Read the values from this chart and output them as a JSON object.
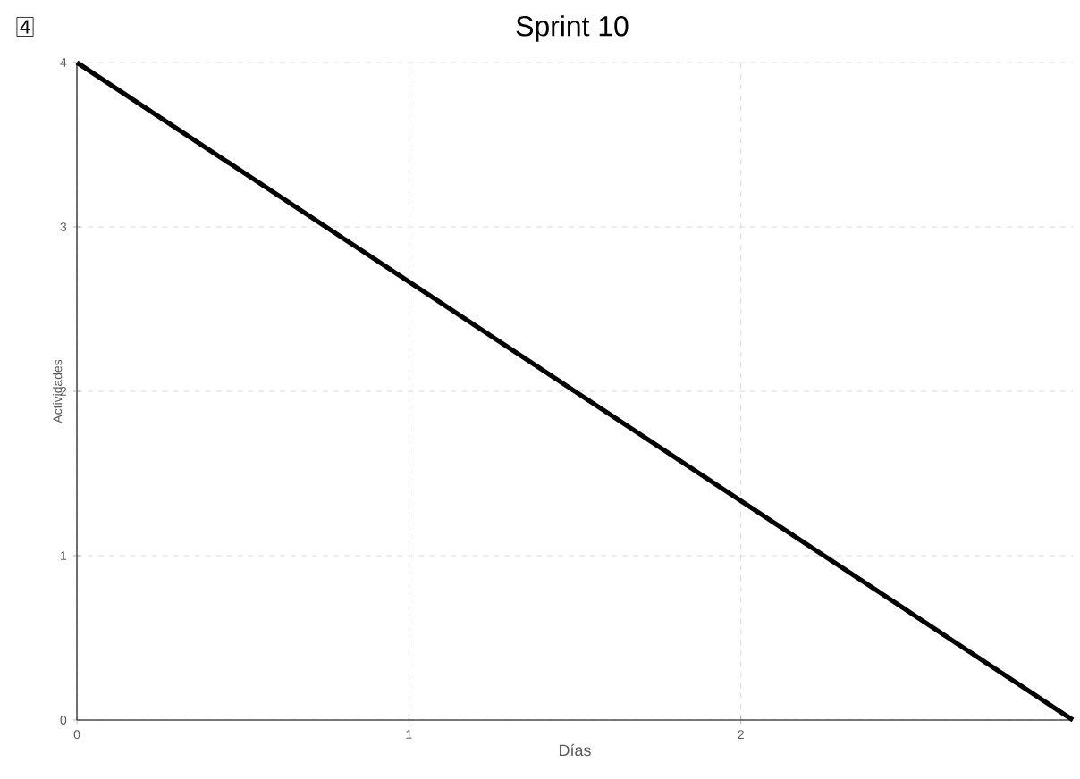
{
  "chart_data": {
    "type": "line",
    "title": "Sprint 10",
    "xlabel": "Días",
    "ylabel": "Actividades",
    "annotations": [
      "4"
    ],
    "x": [
      0,
      3
    ],
    "series": [
      {
        "color": "#000000",
        "values": [
          4,
          0
        ]
      }
    ],
    "xlim": [
      0,
      3
    ],
    "ylim": [
      0,
      4
    ],
    "xticks": [
      0,
      1,
      2
    ],
    "yticks": [
      0,
      1,
      2,
      3,
      4
    ],
    "grid": true,
    "marker": "none",
    "line_style": "solid"
  }
}
